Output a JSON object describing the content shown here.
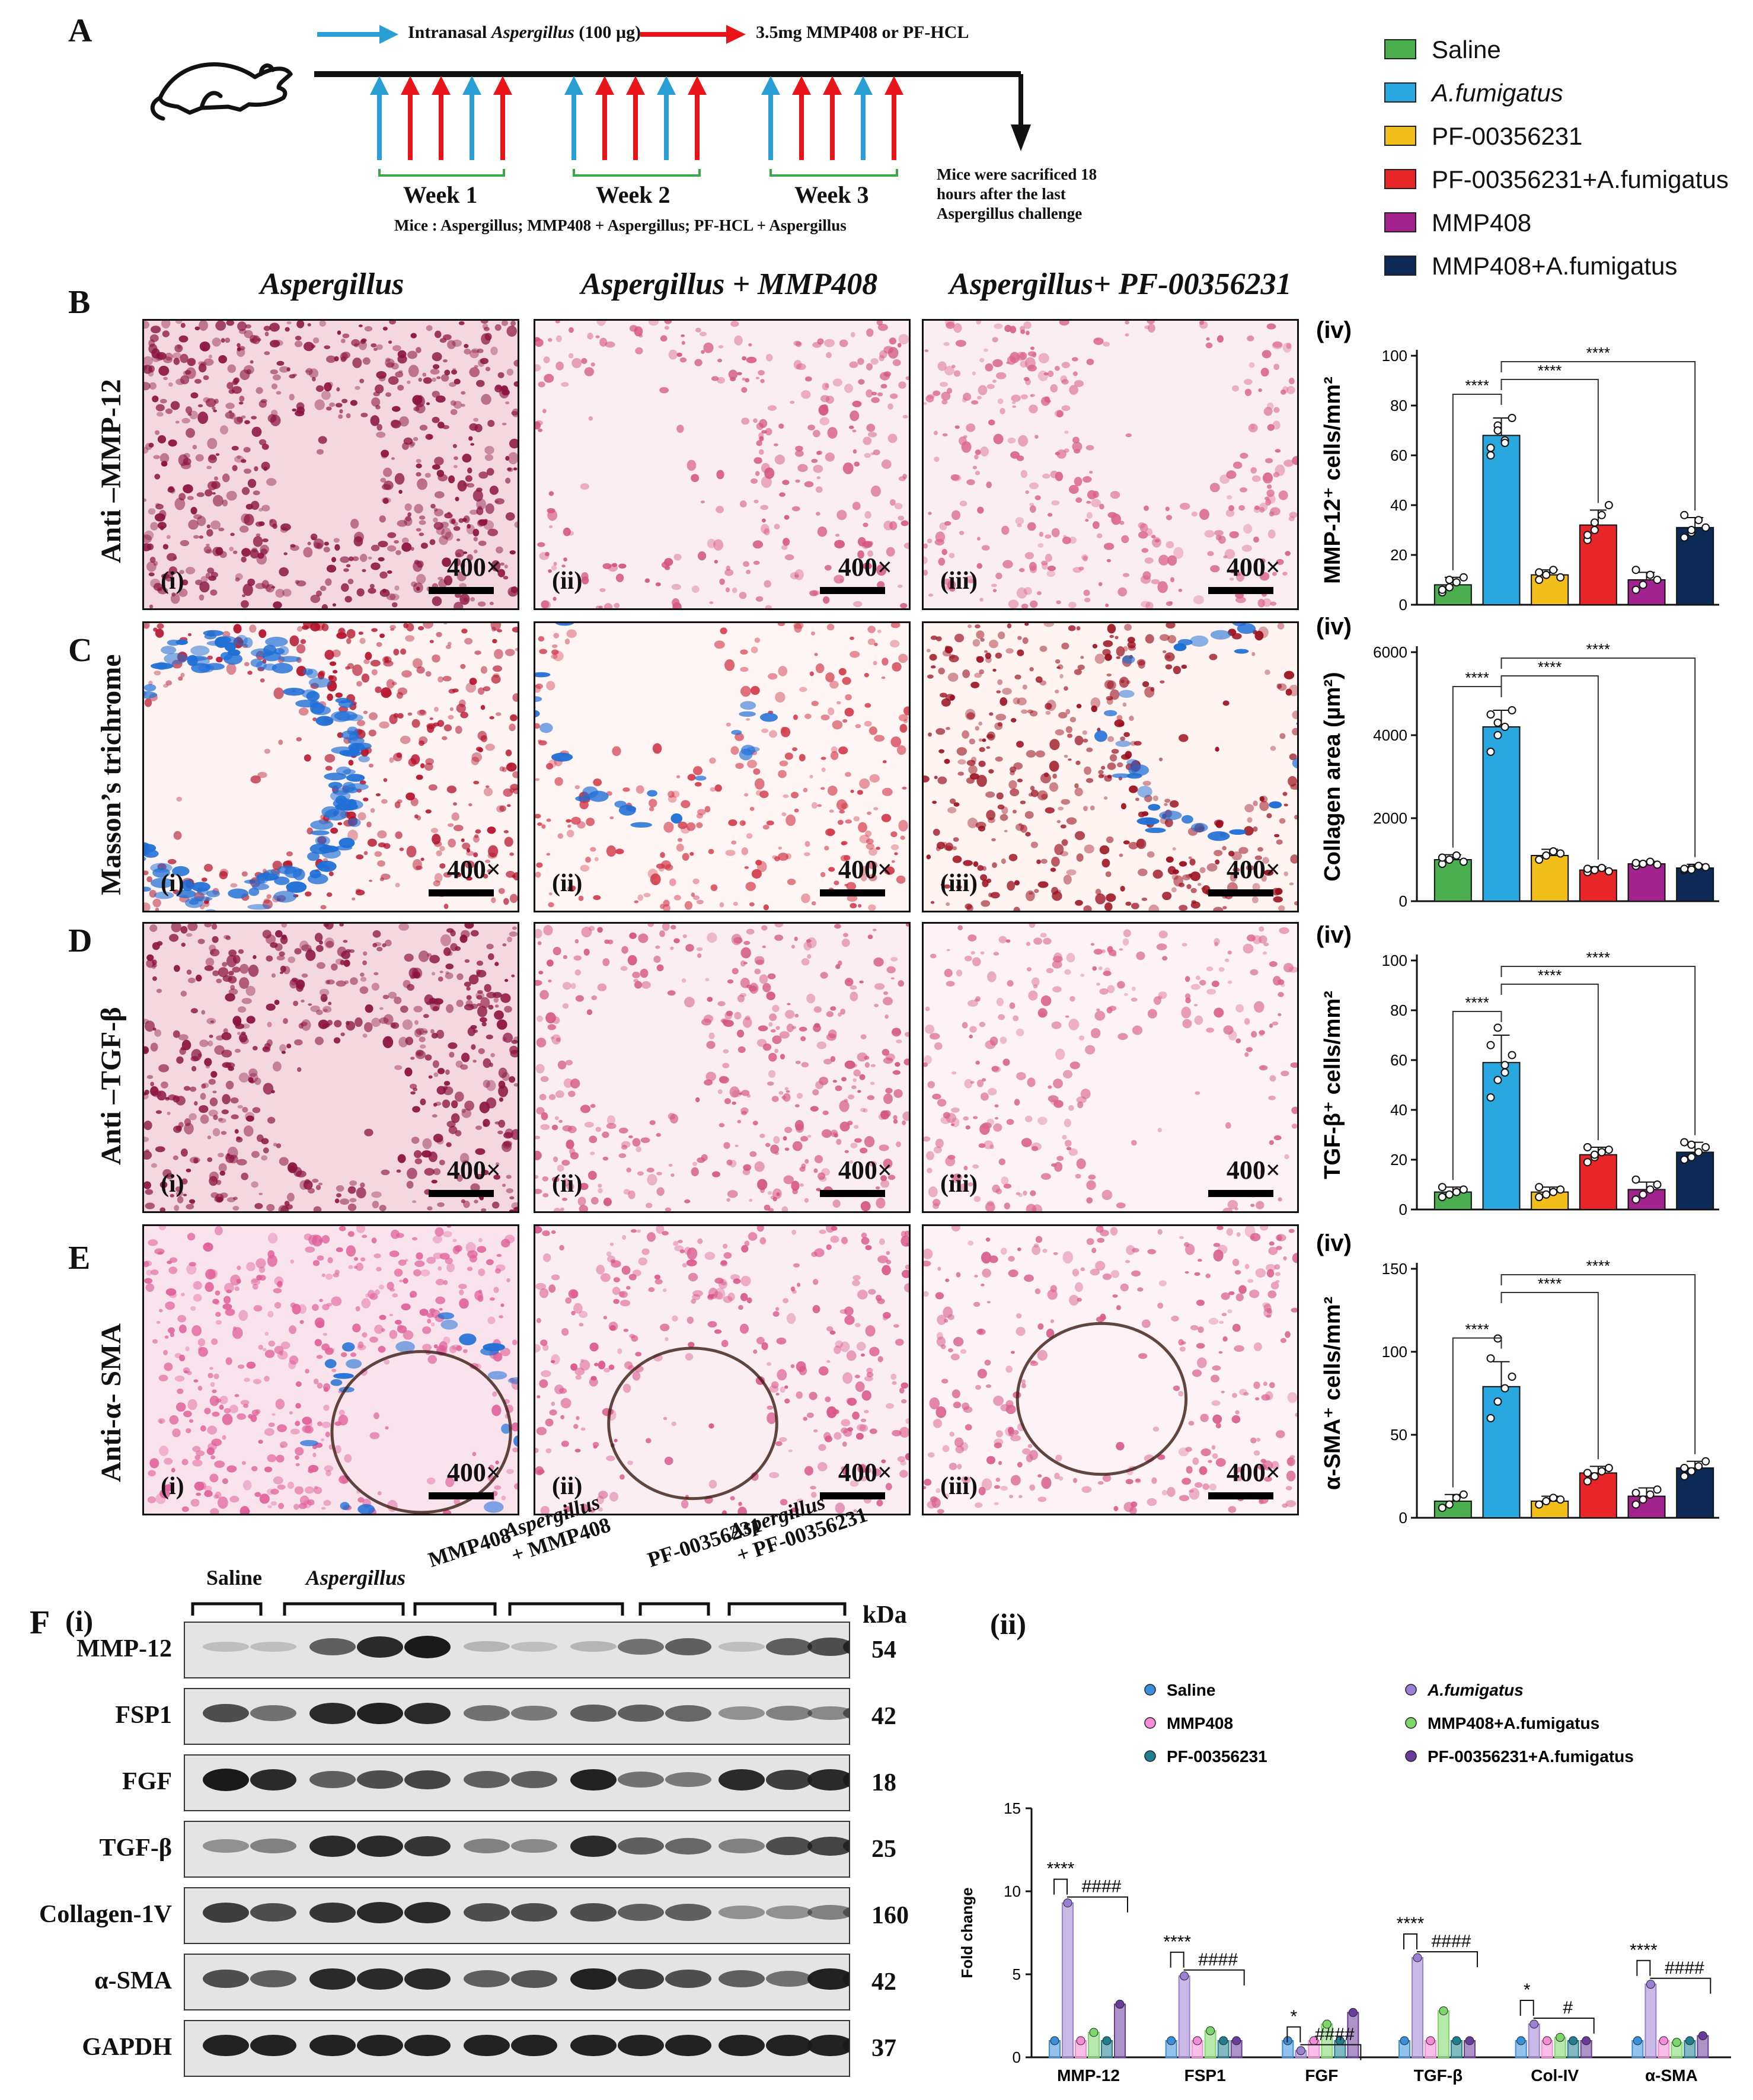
{
  "letters": {
    "A": "A",
    "B": "B",
    "C": "C",
    "D": "D",
    "E": "E",
    "F": "F"
  },
  "timeline": {
    "legend_aspergillus_prefix": "Intranasal ",
    "legend_aspergillus_italic": "Aspergillus",
    "legend_aspergillus_suffix": " (100 µg)",
    "legend_drug": "3.5mg MMP408 or PF-HCL",
    "weeks": [
      "Week 1",
      "Week 2",
      "Week 3"
    ],
    "mice_line": "Mice : Aspergillus; MMP408 + Aspergillus; PF-HCL + Aspergillus",
    "sacrifice_note_1": "Mice were sacrificed 18",
    "sacrifice_note_2": "hours after the last",
    "sacrifice_note_3": "Aspergillus challenge",
    "colors": {
      "aspergillus": "#2a9fd6",
      "drug": "#e8141a"
    }
  },
  "legend": [
    {
      "label": "Saline",
      "color": "#4bae4f",
      "italic": false
    },
    {
      "label": "A.fumigatus",
      "color": "#29a8e0",
      "italic": true
    },
    {
      "label": "PF-00356231",
      "color": "#f2be1a",
      "italic": false
    },
    {
      "label": "PF-00356231+A.fumigatus",
      "color": "#e8262a",
      "italic": false
    },
    {
      "label": "MMP408",
      "color": "#a3238e",
      "italic": false
    },
    {
      "label": "MMP408+A.fumigatus",
      "color": "#0d2a57",
      "italic": false
    }
  ],
  "columns": [
    "Aspergillus",
    "Aspergillus +  MMP408",
    "Aspergillus+ PF-00356231"
  ],
  "rows": [
    {
      "label": "Anti –MMP-12",
      "ylabel": "MMP-12⁺ cells/mm²"
    },
    {
      "label": "Masson’s trichrome",
      "ylabel": "Collagen area (µm²)"
    },
    {
      "label": "Anti –TGF-β",
      "ylabel": "TGF-β⁺ cells/mm²"
    },
    {
      "label": "Anti-α- SMA",
      "ylabel": "α-SMA⁺ cells/mm²"
    }
  ],
  "panel_roman": [
    "(i)",
    "(ii)",
    "(iii)"
  ],
  "magnification": "400×",
  "iv_label": "(iv)",
  "sig": "****",
  "chart_data": [
    {
      "type": "bar",
      "ylabel": "MMP-12⁺ cells/mm²",
      "ylim": [
        0,
        100
      ],
      "yticks": [
        0,
        20,
        40,
        60,
        80,
        100
      ],
      "categories": [
        "Saline",
        "A.fumigatus",
        "PF-00356231",
        "PF-00356231+A.fumigatus",
        "MMP408",
        "MMP408+A.fumigatus"
      ],
      "values": [
        8,
        68,
        12,
        32,
        10,
        31
      ],
      "errors": [
        3,
        7,
        2,
        6,
        3,
        4
      ],
      "points": [
        [
          5,
          7,
          9,
          11,
          6,
          10
        ],
        [
          60,
          72,
          66,
          75,
          63,
          70,
          65
        ],
        [
          10,
          12,
          14,
          11,
          13,
          12
        ],
        [
          26,
          30,
          36,
          40,
          28,
          33
        ],
        [
          6,
          8,
          12,
          10,
          14
        ],
        [
          27,
          29,
          34,
          31,
          36,
          30
        ]
      ],
      "annotations": [
        "****",
        "****",
        "****"
      ]
    },
    {
      "type": "bar",
      "ylabel": "Collagen area (µm²)",
      "ylim": [
        0,
        6000
      ],
      "yticks": [
        0,
        2000,
        4000,
        6000
      ],
      "categories": [
        "Saline",
        "A.fumigatus",
        "PF-00356231",
        "PF-00356231+A.fumigatus",
        "MMP408",
        "MMP408+A.fumigatus"
      ],
      "values": [
        1000,
        4200,
        1100,
        750,
        900,
        800
      ],
      "errors": [
        120,
        400,
        150,
        80,
        60,
        90
      ],
      "points": [
        [
          900,
          1000,
          1100,
          950,
          1050
        ],
        [
          3600,
          4000,
          4200,
          4600,
          4500,
          4300
        ],
        [
          1000,
          1100,
          1200,
          1150
        ],
        [
          700,
          750,
          800,
          720,
          780
        ],
        [
          850,
          900,
          950,
          880,
          920
        ],
        [
          750,
          800,
          850,
          820,
          780,
          760
        ]
      ],
      "annotations": [
        "****",
        "****",
        "****"
      ]
    },
    {
      "type": "bar",
      "ylabel": "TGF-β⁺ cells/mm²",
      "ylim": [
        0,
        100
      ],
      "yticks": [
        0,
        20,
        40,
        60,
        80,
        100
      ],
      "categories": [
        "Saline",
        "A.fumigatus",
        "PF-00356231",
        "PF-00356231+A.fumigatus",
        "MMP408",
        "MMP408+A.fumigatus"
      ],
      "values": [
        7,
        59,
        7,
        22,
        8,
        23
      ],
      "errors": [
        2,
        11,
        2,
        3,
        3,
        4
      ],
      "points": [
        [
          5,
          6,
          7,
          8,
          9
        ],
        [
          45,
          52,
          58,
          62,
          66,
          73,
          55
        ],
        [
          5,
          6,
          7,
          8,
          9
        ],
        [
          19,
          21,
          23,
          24,
          25,
          22
        ],
        [
          4,
          6,
          8,
          10,
          12
        ],
        [
          20,
          21,
          23,
          25,
          27,
          26
        ]
      ],
      "annotations": [
        "****",
        "****",
        "****"
      ]
    },
    {
      "type": "bar",
      "ylabel": "α-SMA⁺ cells/mm²",
      "ylim": [
        0,
        150
      ],
      "yticks": [
        0,
        50,
        100,
        150
      ],
      "categories": [
        "Saline",
        "A.fumigatus",
        "PF-00356231",
        "PF-00356231+A.fumigatus",
        "MMP408",
        "MMP408+A.fumigatus"
      ],
      "values": [
        10,
        79,
        10,
        27,
        13,
        30
      ],
      "errors": [
        4,
        15,
        3,
        4,
        5,
        4
      ],
      "points": [
        [
          6,
          8,
          12,
          14
        ],
        [
          60,
          70,
          78,
          85,
          96,
          108
        ],
        [
          8,
          10,
          12,
          11
        ],
        [
          22,
          25,
          28,
          30,
          27
        ],
        [
          8,
          11,
          14,
          17,
          15
        ],
        [
          25,
          28,
          31,
          34,
          30
        ]
      ],
      "annotations": [
        "****",
        "****",
        "****"
      ]
    },
    {
      "type": "bar",
      "ylabel": "Fold change",
      "ylim": [
        0,
        15
      ],
      "yticks": [
        0,
        5,
        10,
        15
      ],
      "categories": [
        "MMP-12",
        "FSP1",
        "FGF",
        "TGF-β",
        "Col-IV",
        "α-SMA"
      ],
      "series": [
        {
          "name": "Saline",
          "color": "#3a8fd8",
          "values": [
            1,
            1,
            1,
            1,
            1,
            1
          ]
        },
        {
          "name": "A.fumigatus",
          "color": "#9b7fd4",
          "values": [
            9.3,
            4.9,
            0.4,
            6.0,
            2.0,
            4.4
          ]
        },
        {
          "name": "MMP408",
          "color": "#f58ad7",
          "values": [
            1,
            1,
            1,
            1,
            1,
            1
          ]
        },
        {
          "name": "MMP408+A.fumigatus",
          "color": "#7bd76a",
          "values": [
            1.5,
            1.6,
            2.0,
            2.8,
            1.2,
            0.9
          ]
        },
        {
          "name": "PF-00356231",
          "color": "#1f7f90",
          "values": [
            1,
            1,
            1,
            1,
            1,
            1
          ]
        },
        {
          "name": "PF-00356231+A.fumigatus",
          "color": "#6a3c9a",
          "values": [
            3.2,
            1.0,
            2.7,
            1.0,
            1.0,
            1.3
          ]
        }
      ],
      "annotations": [
        "****",
        "####",
        "****",
        "####",
        "*",
        "####",
        "****",
        "####",
        "*",
        "#",
        "****",
        "####"
      ]
    }
  ],
  "wb": {
    "panel_labels": {
      "F": "F",
      "i": "(i)",
      "ii": "(ii)"
    },
    "groups": [
      "Saline",
      "Aspergillus",
      "MMP408",
      "Aspergillus\n+ MMP408",
      "PF-00356231",
      "Aspergillus\n+ PF-00356231"
    ],
    "group_1": "Saline",
    "group_2": "Aspergillus",
    "group_3": "MMP408",
    "group_4a": "Aspergillus",
    "group_4b": "+ MMP408",
    "group_5": "PF-00356231",
    "group_6a": "Aspergillus",
    "group_6b": "+ PF-00356231",
    "kda_header": "kDa",
    "proteins": [
      {
        "name": "MMP-12",
        "kda": "54",
        "intensity": [
          0.05,
          0.05,
          0.6,
          0.9,
          1.0,
          0.1,
          0.05,
          0.1,
          0.5,
          0.6,
          0.05,
          0.6,
          0.7,
          0.8
        ]
      },
      {
        "name": "FSP1",
        "kda": "42",
        "intensity": [
          0.7,
          0.5,
          0.9,
          0.95,
          0.9,
          0.5,
          0.45,
          0.6,
          0.6,
          0.55,
          0.3,
          0.4,
          0.35,
          0.5
        ]
      },
      {
        "name": "FGF",
        "kda": "18",
        "intensity": [
          1.0,
          0.9,
          0.6,
          0.7,
          0.75,
          0.6,
          0.6,
          0.95,
          0.5,
          0.45,
          0.9,
          0.8,
          0.9,
          0.95
        ]
      },
      {
        "name": "TGF-β",
        "kda": "25",
        "intensity": [
          0.3,
          0.4,
          0.9,
          0.9,
          0.85,
          0.4,
          0.35,
          0.9,
          0.6,
          0.55,
          0.4,
          0.7,
          0.75,
          0.7
        ]
      },
      {
        "name": "Collagen-1V",
        "kda": "160",
        "intensity": [
          0.8,
          0.7,
          0.85,
          0.9,
          0.9,
          0.7,
          0.7,
          0.7,
          0.6,
          0.6,
          0.3,
          0.3,
          0.4,
          0.4
        ]
      },
      {
        "name": "α-SMA",
        "kda": "42",
        "intensity": [
          0.7,
          0.6,
          0.9,
          0.9,
          0.9,
          0.6,
          0.65,
          0.95,
          0.8,
          0.7,
          0.6,
          0.5,
          0.95,
          0.95
        ]
      },
      {
        "name": "GAPDH",
        "kda": "37",
        "intensity": [
          0.95,
          0.95,
          0.95,
          0.95,
          0.95,
          0.95,
          0.95,
          0.95,
          0.95,
          0.95,
          0.95,
          0.95,
          0.95,
          0.95
        ]
      }
    ]
  }
}
